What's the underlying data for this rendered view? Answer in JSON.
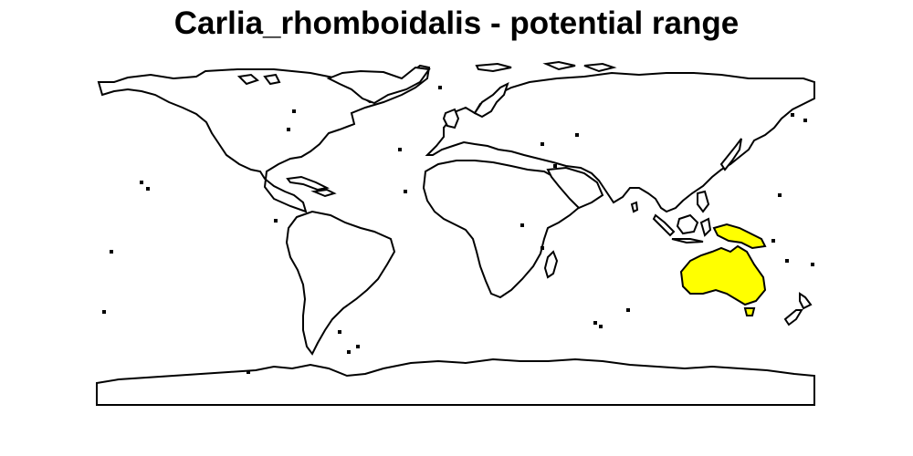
{
  "map": {
    "title": "Carlia_rhomboidalis - potential range",
    "background_color": "#ffffff",
    "land_color": "#ffffff",
    "outline_color": "#000000",
    "range_color": "#ffff00",
    "range_regions": [
      "Australia",
      "New Guinea"
    ]
  }
}
